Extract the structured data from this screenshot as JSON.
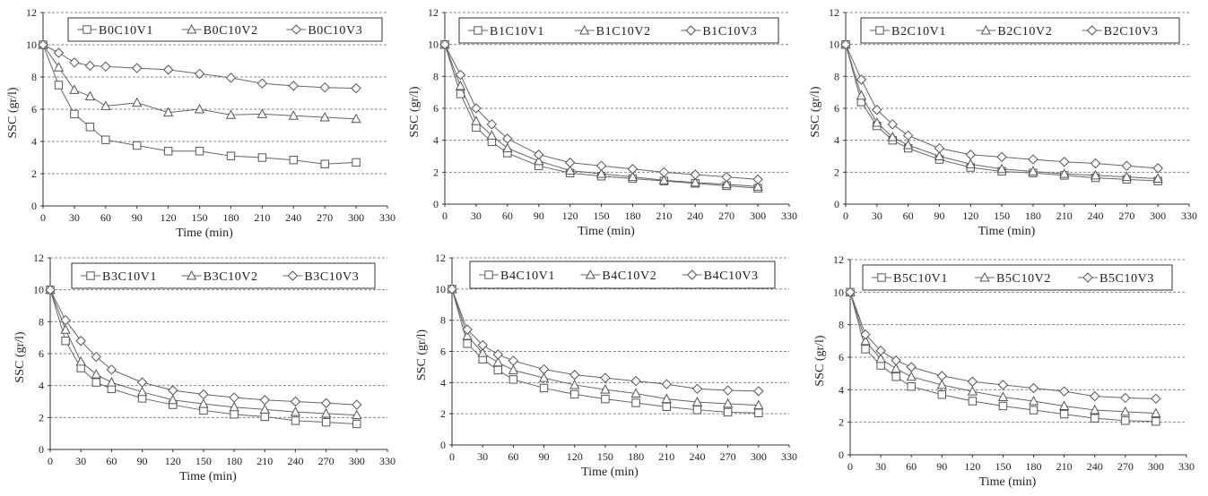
{
  "chart_data": [
    {
      "type": "line",
      "title": "",
      "xlabel": "Time (min)",
      "ylabel": "SSC (gr/l)",
      "xlim": [
        0,
        330
      ],
      "ylim": [
        0,
        12
      ],
      "xticks": [
        0,
        30,
        60,
        90,
        120,
        150,
        180,
        210,
        240,
        270,
        300,
        330
      ],
      "yticks": [
        0,
        2,
        4,
        6,
        8,
        10,
        12
      ],
      "grid": "horizontal dashed",
      "legend": "top",
      "series": [
        {
          "name": "B0C10V1",
          "marker": "square",
          "x": [
            0,
            15,
            30,
            45,
            60,
            90,
            120,
            150,
            180,
            210,
            240,
            270,
            300
          ],
          "y": [
            10,
            7.5,
            5.7,
            4.9,
            4.1,
            3.75,
            3.4,
            3.4,
            3.1,
            3.0,
            2.85,
            2.6,
            2.7
          ]
        },
        {
          "name": "B0C10V2",
          "marker": "triangle",
          "x": [
            0,
            15,
            30,
            45,
            60,
            90,
            120,
            150,
            180,
            210,
            240,
            270,
            300
          ],
          "y": [
            10,
            8.6,
            7.2,
            6.8,
            6.2,
            6.4,
            5.8,
            6.0,
            5.65,
            5.7,
            5.6,
            5.5,
            5.4
          ]
        },
        {
          "name": "B0C10V3",
          "marker": "diamond",
          "x": [
            0,
            15,
            30,
            45,
            60,
            90,
            120,
            150,
            180,
            210,
            240,
            270,
            300
          ],
          "y": [
            10,
            9.5,
            8.9,
            8.7,
            8.65,
            8.55,
            8.45,
            8.2,
            7.95,
            7.6,
            7.45,
            7.35,
            7.3
          ]
        }
      ]
    },
    {
      "type": "line",
      "title": "",
      "xlabel": "Time (min)",
      "ylabel": "SSC (gr/l)",
      "xlim": [
        0,
        330
      ],
      "ylim": [
        0,
        12
      ],
      "xticks": [
        0,
        30,
        60,
        90,
        120,
        150,
        180,
        210,
        240,
        270,
        300,
        330
      ],
      "yticks": [
        0,
        2,
        4,
        6,
        8,
        10,
        12
      ],
      "grid": "horizontal dashed",
      "legend": "top",
      "series": [
        {
          "name": "B1C10V1",
          "marker": "square",
          "x": [
            0,
            15,
            30,
            45,
            60,
            90,
            120,
            150,
            180,
            210,
            240,
            270,
            300
          ],
          "y": [
            10,
            6.9,
            4.8,
            3.9,
            3.2,
            2.4,
            1.95,
            1.75,
            1.6,
            1.45,
            1.3,
            1.15,
            1.0
          ]
        },
        {
          "name": "B1C10V2",
          "marker": "triangle",
          "x": [
            0,
            15,
            30,
            45,
            60,
            90,
            120,
            150,
            180,
            210,
            240,
            270,
            300
          ],
          "y": [
            10,
            7.4,
            5.2,
            4.3,
            3.5,
            2.7,
            2.1,
            1.9,
            1.7,
            1.5,
            1.35,
            1.25,
            1.1
          ]
        },
        {
          "name": "B1C10V3",
          "marker": "diamond",
          "x": [
            0,
            15,
            30,
            45,
            60,
            90,
            120,
            150,
            180,
            210,
            240,
            270,
            300
          ],
          "y": [
            10,
            8.1,
            6.0,
            5.0,
            4.1,
            3.1,
            2.6,
            2.4,
            2.2,
            2.0,
            1.85,
            1.7,
            1.55
          ]
        }
      ]
    },
    {
      "type": "line",
      "title": "",
      "xlabel": "Time (min)",
      "ylabel": "SSC (gr/l)",
      "xlim": [
        0,
        330
      ],
      "ylim": [
        0,
        12
      ],
      "xticks": [
        0,
        30,
        60,
        90,
        120,
        150,
        180,
        210,
        240,
        270,
        300,
        330
      ],
      "yticks": [
        0,
        2,
        4,
        6,
        8,
        10,
        12
      ],
      "grid": "horizontal dashed",
      "legend": "top",
      "series": [
        {
          "name": "B2C10V1",
          "marker": "square",
          "x": [
            0,
            15,
            30,
            45,
            60,
            90,
            120,
            150,
            180,
            210,
            240,
            270,
            300
          ],
          "y": [
            10,
            6.4,
            4.9,
            4.0,
            3.5,
            2.8,
            2.3,
            2.05,
            1.95,
            1.8,
            1.65,
            1.55,
            1.45
          ]
        },
        {
          "name": "B2C10V2",
          "marker": "triangle",
          "x": [
            0,
            15,
            30,
            45,
            60,
            90,
            120,
            150,
            180,
            210,
            240,
            270,
            300
          ],
          "y": [
            10,
            6.8,
            5.1,
            4.2,
            3.7,
            3.0,
            2.5,
            2.2,
            2.05,
            1.9,
            1.8,
            1.7,
            1.6
          ]
        },
        {
          "name": "B2C10V3",
          "marker": "diamond",
          "x": [
            0,
            15,
            30,
            45,
            60,
            90,
            120,
            150,
            180,
            210,
            240,
            270,
            300
          ],
          "y": [
            10,
            7.8,
            5.9,
            5.0,
            4.3,
            3.5,
            3.1,
            2.95,
            2.8,
            2.65,
            2.55,
            2.4,
            2.25
          ]
        }
      ]
    },
    {
      "type": "line",
      "title": "",
      "xlabel": "Time (min)",
      "ylabel": "SSC (gr/l)",
      "xlim": [
        0,
        330
      ],
      "ylim": [
        0,
        12
      ],
      "xticks": [
        0,
        30,
        60,
        90,
        120,
        150,
        180,
        210,
        240,
        270,
        300,
        330
      ],
      "yticks": [
        0,
        2,
        4,
        6,
        8,
        10,
        12
      ],
      "grid": "horizontal dashed",
      "legend": "top",
      "series": [
        {
          "name": "B3C10V1",
          "marker": "square",
          "x": [
            0,
            15,
            30,
            45,
            60,
            90,
            120,
            150,
            180,
            210,
            240,
            270,
            300
          ],
          "y": [
            10,
            6.8,
            5.1,
            4.2,
            3.8,
            3.2,
            2.8,
            2.45,
            2.2,
            2.05,
            1.8,
            1.7,
            1.6
          ]
        },
        {
          "name": "B3C10V2",
          "marker": "triangle",
          "x": [
            0,
            15,
            30,
            45,
            60,
            90,
            120,
            150,
            180,
            210,
            240,
            270,
            300
          ],
          "y": [
            10,
            7.5,
            5.5,
            4.7,
            4.2,
            3.6,
            3.1,
            2.85,
            2.65,
            2.5,
            2.35,
            2.25,
            2.15
          ]
        },
        {
          "name": "B3C10V3",
          "marker": "diamond",
          "x": [
            0,
            15,
            30,
            45,
            60,
            90,
            120,
            150,
            180,
            210,
            240,
            270,
            300
          ],
          "y": [
            10,
            8.1,
            6.8,
            5.8,
            5.0,
            4.2,
            3.7,
            3.45,
            3.25,
            3.1,
            3.0,
            2.9,
            2.8
          ]
        }
      ]
    },
    {
      "type": "line",
      "title": "",
      "xlabel": "Time (min)",
      "ylabel": "SSC (gr/l)",
      "xlim": [
        0,
        330
      ],
      "ylim": [
        0,
        12
      ],
      "xticks": [
        0,
        30,
        60,
        90,
        120,
        150,
        180,
        210,
        240,
        270,
        300,
        330
      ],
      "yticks": [
        0,
        2,
        4,
        6,
        8,
        10,
        12
      ],
      "grid": "horizontal dashed",
      "legend": "top",
      "series": [
        {
          "name": "B4C10V1",
          "marker": "square",
          "x": [
            0,
            15,
            30,
            45,
            60,
            90,
            120,
            150,
            180,
            210,
            240,
            270,
            300
          ],
          "y": [
            10,
            6.5,
            5.5,
            4.8,
            4.2,
            3.65,
            3.25,
            2.95,
            2.7,
            2.45,
            2.25,
            2.1,
            2.05
          ]
        },
        {
          "name": "B4C10V2",
          "marker": "triangle",
          "x": [
            0,
            15,
            30,
            45,
            60,
            90,
            120,
            150,
            180,
            210,
            240,
            270,
            300
          ],
          "y": [
            10,
            7.0,
            5.9,
            5.3,
            4.8,
            4.3,
            3.85,
            3.55,
            3.3,
            2.95,
            2.75,
            2.65,
            2.55
          ]
        },
        {
          "name": "B4C10V3",
          "marker": "diamond",
          "x": [
            0,
            15,
            30,
            45,
            60,
            90,
            120,
            150,
            180,
            210,
            240,
            270,
            300
          ],
          "y": [
            10,
            7.4,
            6.4,
            5.8,
            5.4,
            4.85,
            4.5,
            4.3,
            4.1,
            3.9,
            3.6,
            3.5,
            3.45
          ]
        }
      ]
    },
    {
      "type": "line",
      "title": "",
      "xlabel": "Time (min)",
      "ylabel": "SSC (gr/l)",
      "xlim": [
        0,
        330
      ],
      "ylim": [
        0,
        12
      ],
      "xticks": [
        0,
        30,
        60,
        90,
        120,
        150,
        180,
        210,
        240,
        270,
        300,
        330
      ],
      "yticks": [
        0,
        2,
        4,
        6,
        8,
        10,
        12
      ],
      "grid": "horizontal dashed",
      "legend": "top",
      "series": [
        {
          "name": "B5C10V1",
          "marker": "square",
          "x": [
            0,
            15,
            30,
            45,
            60,
            90,
            120,
            150,
            180,
            210,
            240,
            270,
            300
          ],
          "y": [
            10,
            6.5,
            5.5,
            4.8,
            4.2,
            3.7,
            3.3,
            3.0,
            2.75,
            2.5,
            2.25,
            2.1,
            2.05
          ]
        },
        {
          "name": "B5C10V2",
          "marker": "triangle",
          "x": [
            0,
            15,
            30,
            45,
            60,
            90,
            120,
            150,
            180,
            210,
            240,
            270,
            300
          ],
          "y": [
            10,
            7.0,
            5.9,
            5.3,
            4.8,
            4.3,
            3.9,
            3.55,
            3.3,
            3.0,
            2.75,
            2.65,
            2.55
          ]
        },
        {
          "name": "B5C10V3",
          "marker": "diamond",
          "x": [
            0,
            15,
            30,
            45,
            60,
            90,
            120,
            150,
            180,
            210,
            240,
            270,
            300
          ],
          "y": [
            10,
            7.4,
            6.4,
            5.8,
            5.4,
            4.85,
            4.5,
            4.3,
            4.1,
            3.9,
            3.6,
            3.5,
            3.45
          ]
        }
      ]
    }
  ]
}
